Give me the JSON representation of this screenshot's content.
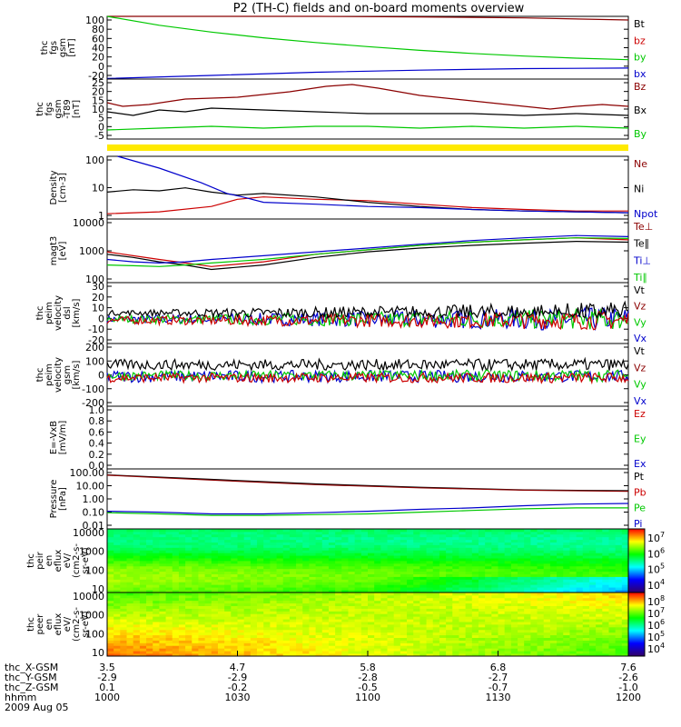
{
  "title": "P2 (TH-C) fields and on-board moments overview",
  "colors": {
    "black": "#000000",
    "red": "#cc0000",
    "green": "#00c800",
    "blue": "#0000cc",
    "yellow": "#ffea00",
    "dark_red": "#8b0000"
  },
  "chart_data": [
    {
      "id": "p1",
      "type": "line",
      "ylabel_lines": [
        "thc",
        "fgs",
        "gsm",
        "[nT]"
      ],
      "yticks": [
        "100",
        "80",
        "60",
        "40",
        "20",
        "0",
        "-20"
      ],
      "ylim": [
        -20,
        100
      ],
      "legend": [
        {
          "label": "Bt",
          "color": "black"
        },
        {
          "label": "bz",
          "color": "red"
        },
        {
          "label": "by",
          "color": "green"
        },
        {
          "label": "bx",
          "color": "blue"
        }
      ],
      "series": [
        {
          "name": "Bt",
          "color": "dark_red",
          "t": [
            0,
            0.2,
            0.4,
            0.6,
            0.8,
            1.0
          ],
          "values": [
            100,
            100,
            100,
            99,
            97,
            93
          ]
        },
        {
          "name": "by",
          "color": "green",
          "t": [
            0,
            0.1,
            0.2,
            0.3,
            0.4,
            0.5,
            0.6,
            0.7,
            0.8,
            0.9,
            1.0
          ],
          "values": [
            100,
            83,
            70,
            59,
            50,
            42,
            35,
            29,
            24,
            20,
            17
          ]
        },
        {
          "name": "bx",
          "color": "blue",
          "t": [
            0,
            0.2,
            0.4,
            0.6,
            0.8,
            1.0
          ],
          "values": [
            -19,
            -13,
            -7,
            -3,
            0,
            1
          ]
        }
      ]
    },
    {
      "id": "p2",
      "type": "line",
      "ylabel_lines": [
        "thc",
        "fgs",
        "gsm",
        "-T89",
        "[nT]"
      ],
      "yticks": [
        "25",
        "20",
        "15",
        "10",
        "5",
        "0",
        "-5"
      ],
      "ylim": [
        -8,
        25
      ],
      "legend": [
        {
          "label": "Bz",
          "color": "dark_red"
        },
        {
          "label": "Bx",
          "color": "black"
        },
        {
          "label": "By",
          "color": "green"
        }
      ],
      "series": [
        {
          "name": "Bz",
          "color": "dark_red",
          "t": [
            0,
            0.03,
            0.08,
            0.15,
            0.25,
            0.35,
            0.42,
            0.47,
            0.52,
            0.6,
            0.7,
            0.8,
            0.85,
            0.9,
            0.95,
            1.0
          ],
          "values": [
            12,
            10,
            11,
            14,
            15,
            18,
            21,
            22,
            20,
            16,
            13,
            10,
            8.5,
            10,
            11,
            10
          ]
        },
        {
          "name": "Bx",
          "color": "black",
          "t": [
            0,
            0.05,
            0.1,
            0.15,
            0.2,
            0.3,
            0.4,
            0.5,
            0.6,
            0.7,
            0.8,
            0.9,
            1.0
          ],
          "values": [
            7,
            5,
            8,
            7,
            9,
            8,
            7,
            6,
            6,
            6,
            5,
            6,
            5
          ]
        },
        {
          "name": "By",
          "color": "green",
          "t": [
            0,
            0.1,
            0.2,
            0.3,
            0.4,
            0.5,
            0.6,
            0.7,
            0.8,
            0.9,
            1.0
          ],
          "values": [
            -3,
            -2,
            -1,
            -2,
            -1,
            -1,
            -2,
            -1,
            -2,
            -1,
            -2
          ]
        }
      ]
    },
    {
      "id": "p3",
      "type": "line",
      "scale": "log",
      "ylabel_lines": [
        "Density",
        "[cm-3]"
      ],
      "yticks": [
        "100",
        "10",
        "1"
      ],
      "ylim": [
        0.6,
        250
      ],
      "legend": [
        {
          "label": "Ne",
          "color": "dark_red"
        },
        {
          "label": "Ni",
          "color": "black"
        },
        {
          "label": "Npot",
          "color": "blue"
        }
      ],
      "series": [
        {
          "name": "Ne",
          "color": "red",
          "t": [
            0,
            0.1,
            0.2,
            0.25,
            0.3,
            0.4,
            0.5,
            0.6,
            0.7,
            0.8,
            0.9,
            1.0
          ],
          "values": [
            1,
            1.2,
            2,
            4,
            5,
            4,
            3.5,
            2.5,
            1.8,
            1.5,
            1.3,
            1.3
          ]
        },
        {
          "name": "Ni",
          "color": "black",
          "t": [
            0,
            0.05,
            0.1,
            0.15,
            0.2,
            0.25,
            0.3,
            0.4,
            0.5,
            0.6,
            0.7,
            0.8,
            0.9,
            1.0
          ],
          "values": [
            8,
            10,
            9,
            12,
            8,
            6,
            7,
            5,
            3,
            2,
            1.5,
            1.3,
            1.2,
            1.1
          ]
        },
        {
          "name": "Npot",
          "color": "blue",
          "t": [
            0.02,
            0.1,
            0.18,
            0.23,
            0.26,
            0.3,
            0.4,
            0.5,
            0.6,
            0.7,
            0.8,
            0.9,
            1.0
          ],
          "values": [
            250,
            80,
            20,
            7,
            5,
            3,
            2.5,
            2,
            1.8,
            1.5,
            1.3,
            1.2,
            1.1
          ]
        }
      ]
    },
    {
      "id": "p4",
      "type": "line",
      "scale": "log",
      "ylabel_lines": [
        "magt3",
        "[eV]"
      ],
      "yticks": [
        "10000",
        "1000",
        "100"
      ],
      "ylim": [
        30,
        10000
      ],
      "legend": [
        {
          "label": "Te⊥",
          "color": "dark_red"
        },
        {
          "label": "Te∥",
          "color": "black"
        },
        {
          "label": "Ti⊥",
          "color": "blue"
        },
        {
          "label": "Ti∥",
          "color": "green"
        }
      ],
      "series": [
        {
          "name": "Te⊥",
          "color": "red",
          "t": [
            0,
            0.05,
            0.1,
            0.15,
            0.2,
            0.3,
            0.4,
            0.5,
            0.6,
            0.7,
            0.8,
            0.9,
            1.0
          ],
          "values": [
            500,
            350,
            250,
            180,
            130,
            200,
            400,
            600,
            900,
            1200,
            1500,
            1800,
            1500
          ]
        },
        {
          "name": "Te∥",
          "color": "black",
          "t": [
            0,
            0.05,
            0.1,
            0.15,
            0.2,
            0.3,
            0.4,
            0.5,
            0.6,
            0.7,
            0.8,
            0.9,
            1.0
          ],
          "values": [
            400,
            300,
            200,
            150,
            100,
            150,
            300,
            500,
            700,
            900,
            1100,
            1300,
            1200
          ]
        },
        {
          "name": "Ti⊥",
          "color": "blue",
          "t": [
            0,
            0.05,
            0.1,
            0.15,
            0.2,
            0.3,
            0.4,
            0.5,
            0.6,
            0.7,
            0.8,
            0.9,
            1.0
          ],
          "values": [
            250,
            200,
            180,
            200,
            250,
            350,
            500,
            700,
            1000,
            1400,
            1800,
            2200,
            2000
          ]
        },
        {
          "name": "Ti∥",
          "color": "green",
          "t": [
            0,
            0.05,
            0.1,
            0.15,
            0.2,
            0.3,
            0.4,
            0.5,
            0.6,
            0.7,
            0.8,
            0.9,
            1.0
          ],
          "values": [
            150,
            140,
            130,
            150,
            180,
            250,
            400,
            600,
            900,
            1200,
            1500,
            1800,
            1700
          ]
        }
      ]
    },
    {
      "id": "p5",
      "type": "line",
      "noisy": true,
      "ylabel_lines": [
        "thc",
        "peim",
        "velocity",
        "dsl",
        "[km/s]"
      ],
      "yticks": [
        "30",
        "20",
        "10",
        "0",
        "-10",
        "-20"
      ],
      "ylim": [
        -20,
        30
      ],
      "legend": [
        {
          "label": "Vt",
          "color": "black"
        },
        {
          "label": "Vz",
          "color": "dark_red"
        },
        {
          "label": "Vy",
          "color": "green"
        },
        {
          "label": "Vx",
          "color": "blue"
        }
      ],
      "series": [
        {
          "name": "Vx",
          "color": "blue",
          "mean": 0,
          "amp0": 3,
          "amp1": 10
        },
        {
          "name": "Vy",
          "color": "green",
          "mean": 0,
          "amp0": 3,
          "amp1": 9
        },
        {
          "name": "Vz",
          "color": "red",
          "mean": -1,
          "amp0": 3,
          "amp1": 8
        },
        {
          "name": "Vt",
          "color": "black",
          "mean": 4,
          "amp0": 2,
          "amp1": 9,
          "abs": true
        }
      ]
    },
    {
      "id": "p6",
      "type": "line",
      "noisy": true,
      "ylabel_lines": [
        "thc",
        "peim",
        "velocity",
        "gsm",
        "[km/s]"
      ],
      "yticks": [
        "200",
        "100",
        "0",
        "-100",
        "-200"
      ],
      "ylim": [
        -200,
        220
      ],
      "legend": [
        {
          "label": "Vt",
          "color": "black"
        },
        {
          "label": "Vz",
          "color": "dark_red"
        },
        {
          "label": "Vy",
          "color": "green"
        },
        {
          "label": "Vx",
          "color": "blue"
        }
      ],
      "series": [
        {
          "name": "Vx",
          "color": "blue",
          "mean": 0,
          "amp0": 40,
          "amp1": 40
        },
        {
          "name": "Vy",
          "color": "green",
          "mean": 5,
          "amp0": 30,
          "amp1": 40
        },
        {
          "name": "Vz",
          "color": "red",
          "mean": -10,
          "amp0": 30,
          "amp1": 35
        },
        {
          "name": "Vt",
          "color": "black",
          "mean": 60,
          "amp0": 35,
          "amp1": 40,
          "abs": true
        }
      ]
    },
    {
      "id": "p7",
      "type": "line",
      "ylabel_lines": [
        "E=-VxB",
        "[mV/m]"
      ],
      "yticks": [
        "1.0",
        "0.8",
        "0.6",
        "0.4",
        "0.2",
        "0.0"
      ],
      "ylim": [
        0,
        1
      ],
      "legend": [
        {
          "label": "Ez",
          "color": "red"
        },
        {
          "label": "Ey",
          "color": "green"
        },
        {
          "label": "Ex",
          "color": "blue"
        }
      ],
      "series": []
    },
    {
      "id": "p8",
      "type": "line",
      "scale": "log",
      "ylabel_lines": [
        "Pressure",
        "[nPa]"
      ],
      "yticks": [
        "100.00",
        "10.00",
        "1.00",
        "0.10",
        "0.01"
      ],
      "ylim": [
        0.01,
        100
      ],
      "legend": [
        {
          "label": "Pt",
          "color": "black"
        },
        {
          "label": "Pb",
          "color": "red"
        },
        {
          "label": "Pe",
          "color": "green"
        },
        {
          "label": "Pi",
          "color": "blue"
        }
      ],
      "series": [
        {
          "name": "Pt",
          "color": "black",
          "t": [
            0,
            0.2,
            0.4,
            0.6,
            0.8,
            1.0
          ],
          "values": [
            40,
            20,
            10,
            6,
            4,
            3.5
          ]
        },
        {
          "name": "Pb",
          "color": "dark_red",
          "t": [
            0,
            0.2,
            0.4,
            0.6,
            0.8,
            1.0
          ],
          "values": [
            38,
            18,
            9,
            5.5,
            3.8,
            3.2
          ]
        },
        {
          "name": "Pi",
          "color": "blue",
          "t": [
            0,
            0.1,
            0.2,
            0.3,
            0.4,
            0.5,
            0.6,
            0.7,
            0.8,
            0.9,
            1.0
          ],
          "values": [
            0.15,
            0.13,
            0.1,
            0.1,
            0.12,
            0.15,
            0.2,
            0.25,
            0.35,
            0.45,
            0.5
          ]
        },
        {
          "name": "Pe",
          "color": "green",
          "t": [
            0,
            0.1,
            0.2,
            0.3,
            0.4,
            0.5,
            0.6,
            0.7,
            0.8,
            0.9,
            1.0
          ],
          "values": [
            0.12,
            0.1,
            0.08,
            0.08,
            0.09,
            0.1,
            0.13,
            0.17,
            0.22,
            0.25,
            0.25
          ]
        }
      ]
    },
    {
      "id": "p9",
      "type": "heatmap",
      "ylabel_lines": [
        "thc",
        "peir",
        "en",
        "eflux",
        "eV/",
        "(cm2-s-",
        "sr-eV)"
      ],
      "yticks": [
        "10000",
        "1000",
        "100",
        "10"
      ],
      "colorbar_ticks": [
        "10^7",
        "10^6",
        "10^5",
        "10^4"
      ]
    },
    {
      "id": "p10",
      "type": "heatmap",
      "ylabel_lines": [
        "thc",
        "peer",
        "en",
        "eflux",
        "eV/",
        "(cm2-s-",
        "sr-eV)"
      ],
      "yticks": [
        "10000",
        "1000",
        "100",
        "10"
      ],
      "colorbar_ticks": [
        "10^8",
        "10^7",
        "10^6",
        "10^5",
        "10^4"
      ]
    }
  ],
  "xaxis": {
    "rows": [
      {
        "label": "thc_X-GSM",
        "values": [
          "3.5",
          "4.7",
          "5.8",
          "6.8",
          "7.6"
        ]
      },
      {
        "label": "thc_Y-GSM",
        "values": [
          "-2.9",
          "-2.9",
          "-2.8",
          "-2.7",
          "-2.6"
        ]
      },
      {
        "label": "thc_Z-GSM",
        "values": [
          "0.1",
          "-0.2",
          "-0.5",
          "-0.7",
          "-1.0"
        ]
      },
      {
        "label": "hhmm",
        "values": [
          "1000",
          "1030",
          "1100",
          "1130",
          "1200"
        ]
      }
    ],
    "date": "2009 Aug 05"
  }
}
